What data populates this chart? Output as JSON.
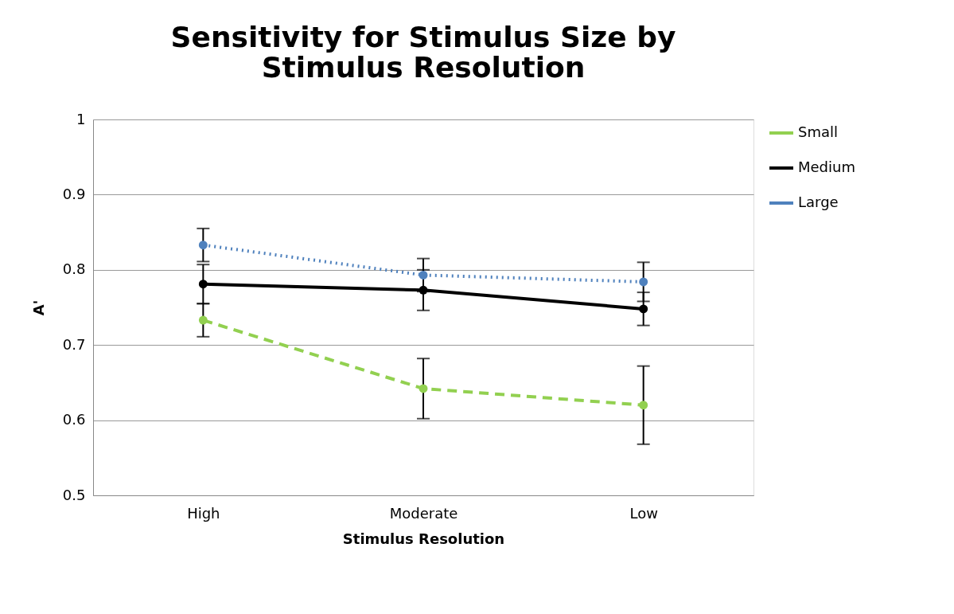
{
  "chart_data": {
    "type": "line",
    "title": "Sensitivity for Stimulus Size by Stimulus Resolution",
    "xlabel": "Stimulus Resolution",
    "ylabel": "A'",
    "categories": [
      "High",
      "Moderate",
      "Low"
    ],
    "series": [
      {
        "name": "Small",
        "color": "#92d050",
        "line_style": "dashed",
        "values": [
          0.733,
          0.642,
          0.62
        ],
        "errors": [
          0.022,
          0.04,
          0.052
        ]
      },
      {
        "name": "Medium",
        "color": "#000000",
        "line_style": "solid",
        "values": [
          0.781,
          0.773,
          0.748
        ],
        "errors": [
          0.026,
          0.027,
          0.022
        ]
      },
      {
        "name": "Large",
        "color": "#4f81bd",
        "line_style": "dotted",
        "values": [
          0.833,
          0.793,
          0.784
        ],
        "errors": [
          0.022,
          0.022,
          0.026
        ]
      }
    ],
    "ylim": [
      0.5,
      1
    ],
    "yticks": [
      0.5,
      0.6,
      0.7,
      0.8,
      0.9,
      1
    ],
    "grid": "y",
    "legend": "right",
    "marker": "circle"
  }
}
